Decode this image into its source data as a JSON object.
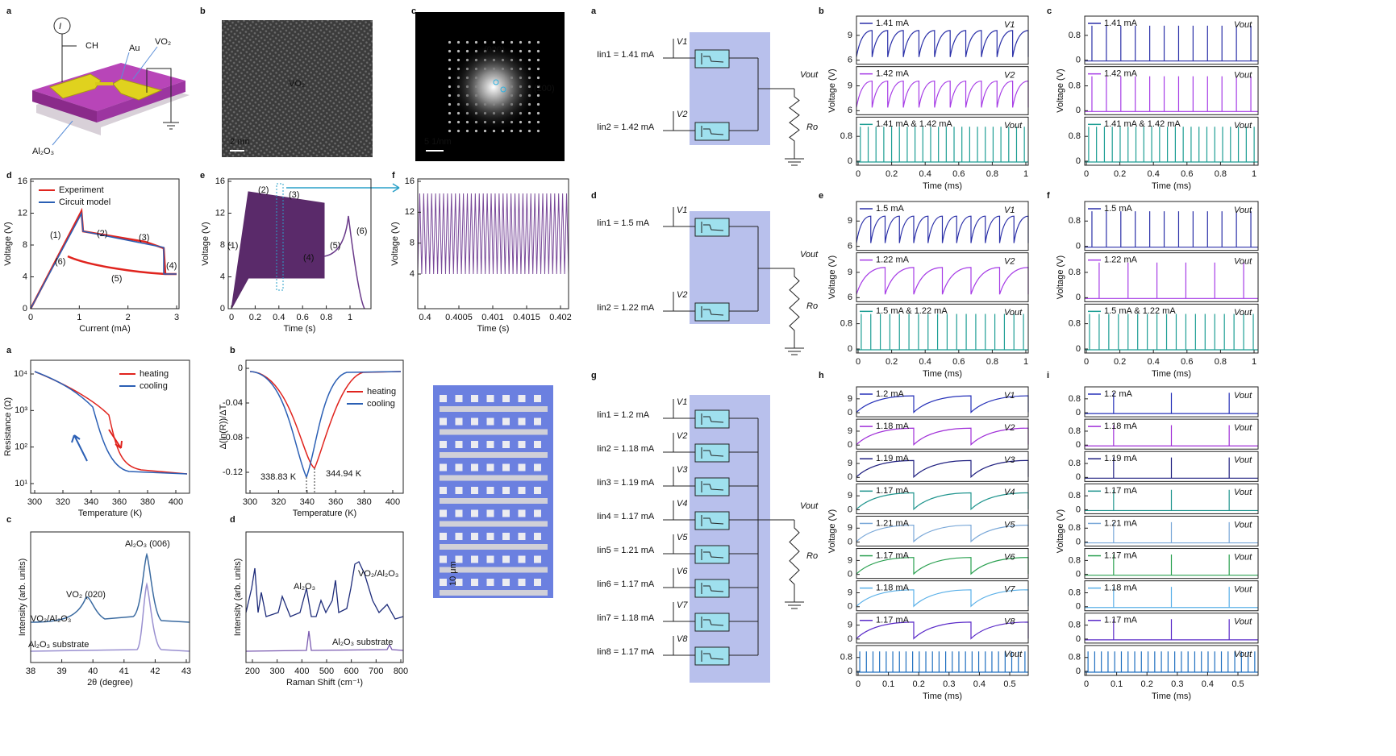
{
  "left": {
    "device": {
      "letter": "a",
      "texts": [
        "I",
        "CH",
        "Au",
        "VO₂",
        "Al₂O₃"
      ]
    },
    "tem": {
      "letter": "b",
      "texts": [
        "VO₂",
        "2 nm"
      ]
    },
    "fft": {
      "letter": "c",
      "texts": [
        "(020)",
        "(200)",
        "5 1/nm"
      ]
    },
    "plots": [
      {
        "letter": "d",
        "xlabel": "Current (mA)",
        "ylabel": "Voltage (V)",
        "xticks": [
          0,
          1,
          2,
          3
        ],
        "yticks": [
          0,
          4,
          8,
          12,
          16
        ],
        "legend": [
          "Experiment",
          "Circuit model"
        ],
        "notes": [
          "(1)",
          "(2)",
          "(3)",
          "(4)",
          "(5)",
          "(6)"
        ]
      },
      {
        "letter": "e",
        "xlabel": "Time (s)",
        "ylabel": "Voltage (V)",
        "xticks": [
          "0",
          "0.2",
          "0.4",
          "0.6",
          "0.8",
          "1"
        ],
        "yticks": [
          0,
          4,
          8,
          12,
          16
        ],
        "notes": [
          "(1)",
          "(2)",
          "(3)",
          "(4)",
          "(5)",
          "(6)"
        ]
      },
      {
        "letter": "f",
        "xlabel": "Time (s)",
        "ylabel": "Voltage (V)",
        "xticks": [
          "0.4",
          "0.4005",
          "0.401",
          "0.4015",
          "0.402"
        ],
        "yticks": [
          4,
          8,
          12,
          16
        ]
      },
      {
        "letter": "a",
        "xlabel": "Temperature (K)",
        "ylabel": "Resistance (Ω)",
        "xticks": [
          300,
          320,
          340,
          360,
          380,
          400
        ],
        "yticks": [
          "10¹",
          "10²",
          "10³",
          "10⁴"
        ],
        "legend": [
          "heating",
          "cooling"
        ]
      },
      {
        "letter": "b",
        "xlabel": "Temperature (K)",
        "ylabel": "Δ(ln(R))/ΔT",
        "xticks": [
          300,
          320,
          340,
          360,
          380,
          400
        ],
        "yticks": [
          "0",
          "-0.04",
          "-0.08",
          "-0.12"
        ],
        "legend": [
          "heating",
          "cooling"
        ],
        "notes": [
          "338.83 K",
          "344.94 K"
        ]
      },
      {
        "letter": "c",
        "xlabel": "2θ (degree)",
        "ylabel": "Intensity (arb. units)",
        "xticks": [
          38,
          39,
          40,
          41,
          42,
          43
        ],
        "notes": [
          "Al₂O₃ (006)",
          "VO₂ (020)",
          "VO₂/Al₂O₃",
          "Al₂O₃ substrate"
        ]
      },
      {
        "letter": "d",
        "xlabel": "Raman Shift (cm⁻¹)",
        "ylabel": "Intensity (arb. units)",
        "xticks": [
          200,
          300,
          400,
          500,
          600,
          700,
          800
        ],
        "notes": [
          "Al₂O₃",
          "VO₂/Al₂O₃",
          "Al₂O₃ substrate"
        ]
      }
    ],
    "array": {
      "scale": "10 μm"
    }
  },
  "right": {
    "circuits": [
      {
        "letter": "a",
        "inputs": [
          {
            "current": "Iin1 = 1.41 mA",
            "node": "V1"
          },
          {
            "current": "Iin2 = 1.42 mA",
            "node": "V2"
          }
        ],
        "output": "Vout",
        "resistor": "Ro"
      },
      {
        "letter": "d",
        "inputs": [
          {
            "current": "Iin1 = 1.5 mA",
            "node": "V1"
          },
          {
            "current": "Iin2 = 1.22 mA",
            "node": "V2"
          }
        ],
        "output": "Vout",
        "resistor": "Ro"
      },
      {
        "letter": "g",
        "inputs": [
          {
            "current": "Iin1 = 1.2 mA",
            "node": "V1"
          },
          {
            "current": "Iin2 = 1.18 mA",
            "node": "V2"
          },
          {
            "current": "Iin3 = 1.19 mA",
            "node": "V3"
          },
          {
            "current": "Iin4 = 1.17 mA",
            "node": "V4"
          },
          {
            "current": "Iin5 = 1.21 mA",
            "node": "V5"
          },
          {
            "current": "Iin6 = 1.17 mA",
            "node": "V6"
          },
          {
            "current": "Iin7 = 1.18 mA",
            "node": "V7"
          },
          {
            "current": "Iin8 = 1.17 mA",
            "node": "V8"
          }
        ],
        "output": "Vout",
        "resistor": "Ro"
      }
    ],
    "traces": [
      {
        "letter": "b",
        "xlabel": "Time (ms)",
        "ylabel": "Voltage (V)",
        "xticks": [
          "0",
          "0.2",
          "0.4",
          "0.6",
          "0.8",
          "1"
        ],
        "rows": [
          {
            "label": "1.41 mA",
            "node": "V1",
            "yticks": [
              "6",
              "9"
            ]
          },
          {
            "label": "1.42 mA",
            "node": "V2",
            "yticks": [
              "6",
              "9"
            ]
          },
          {
            "label": "1.41 mA & 1.42 mA",
            "node": "Vout",
            "yticks": [
              "0",
              "0.8"
            ]
          }
        ]
      },
      {
        "letter": "c",
        "xlabel": "Time (ms)",
        "ylabel": "Voltage (V)",
        "xticks": [
          "0",
          "0.2",
          "0.4",
          "0.6",
          "0.8",
          "1"
        ],
        "rows": [
          {
            "label": "1.41 mA",
            "node": "Vout",
            "yticks": [
              "0",
              "0.8"
            ]
          },
          {
            "label": "1.42 mA",
            "node": "Vout",
            "yticks": [
              "0",
              "0.8"
            ]
          },
          {
            "label": "1.41 mA & 1.42 mA",
            "node": "Vout",
            "yticks": [
              "0",
              "0.8"
            ]
          }
        ]
      },
      {
        "letter": "e",
        "xlabel": "Time (ms)",
        "ylabel": "Voltage (V)",
        "xticks": [
          "0",
          "0.2",
          "0.4",
          "0.6",
          "0.8",
          "1"
        ],
        "rows": [
          {
            "label": "1.5 mA",
            "node": "V1",
            "yticks": [
              "6",
              "9"
            ]
          },
          {
            "label": "1.22 mA",
            "node": "V2",
            "yticks": [
              "6",
              "9"
            ]
          },
          {
            "label": "1.5 mA & 1.22 mA",
            "node": "Vout",
            "yticks": [
              "0",
              "0.8"
            ]
          }
        ]
      },
      {
        "letter": "f",
        "xlabel": "Time (ms)",
        "ylabel": "Voltage (V)",
        "xticks": [
          "0",
          "0.2",
          "0.4",
          "0.6",
          "0.8",
          "1"
        ],
        "rows": [
          {
            "label": "1.5 mA",
            "node": "Vout",
            "yticks": [
              "0",
              "0.8"
            ]
          },
          {
            "label": "1.22 mA",
            "node": "Vout",
            "yticks": [
              "0",
              "0.8"
            ]
          },
          {
            "label": "1.5 mA & 1.22 mA",
            "node": "Vout",
            "yticks": [
              "0",
              "0.8"
            ]
          }
        ]
      },
      {
        "letter": "h",
        "xlabel": "Time (ms)",
        "ylabel": "Voltage (V)",
        "xticks": [
          "0",
          "0.1",
          "0.2",
          "0.3",
          "0.4",
          "0.5"
        ],
        "rows": [
          {
            "label": "1.2 mA",
            "node": "V1",
            "yticks": [
              "0",
              "9"
            ]
          },
          {
            "label": "1.18 mA",
            "node": "V2",
            "yticks": [
              "0",
              "9"
            ]
          },
          {
            "label": "1.19 mA",
            "node": "V3",
            "yticks": [
              "0",
              "9"
            ]
          },
          {
            "label": "1.17 mA",
            "node": "V4",
            "yticks": [
              "0",
              "9"
            ]
          },
          {
            "label": "1.21 mA",
            "node": "V5",
            "yticks": [
              "0",
              "9"
            ]
          },
          {
            "label": "1.17 mA",
            "node": "V6",
            "yticks": [
              "0",
              "9"
            ]
          },
          {
            "label": "1.18 mA",
            "node": "V7",
            "yticks": [
              "0",
              "9"
            ]
          },
          {
            "label": "1.17 mA",
            "node": "V8",
            "yticks": [
              "0",
              "9"
            ]
          },
          {
            "node": "Vout",
            "yticks": [
              "0",
              "0.8"
            ]
          }
        ]
      },
      {
        "letter": "i",
        "xlabel": "Time (ms)",
        "ylabel": "Voltage (V)",
        "xticks": [
          "0",
          "0.1",
          "0.2",
          "0.3",
          "0.4",
          "0.5"
        ],
        "rows": [
          {
            "label": "1.2 mA",
            "node": "Vout",
            "yticks": [
              "0",
              "0.8"
            ]
          },
          {
            "label": "1.18 mA",
            "node": "Vout",
            "yticks": [
              "0",
              "0.8"
            ]
          },
          {
            "label": "1.19 mA",
            "node": "Vout",
            "yticks": [
              "0",
              "0.8"
            ]
          },
          {
            "label": "1.17 mA",
            "node": "Vout",
            "yticks": [
              "0",
              "0.8"
            ]
          },
          {
            "label": "1.21 mA",
            "node": "Vout",
            "yticks": [
              "0",
              "0.8"
            ]
          },
          {
            "label": "1.17 mA",
            "node": "Vout",
            "yticks": [
              "0",
              "0.8"
            ]
          },
          {
            "label": "1.18 mA",
            "node": "Vout",
            "yticks": [
              "0",
              "0.8"
            ]
          },
          {
            "label": "1.17 mA",
            "node": "Vout",
            "yticks": [
              "0",
              "0.8"
            ]
          },
          {
            "node": "Vout",
            "yticks": [
              "0",
              "0.8"
            ]
          }
        ]
      }
    ]
  }
}
